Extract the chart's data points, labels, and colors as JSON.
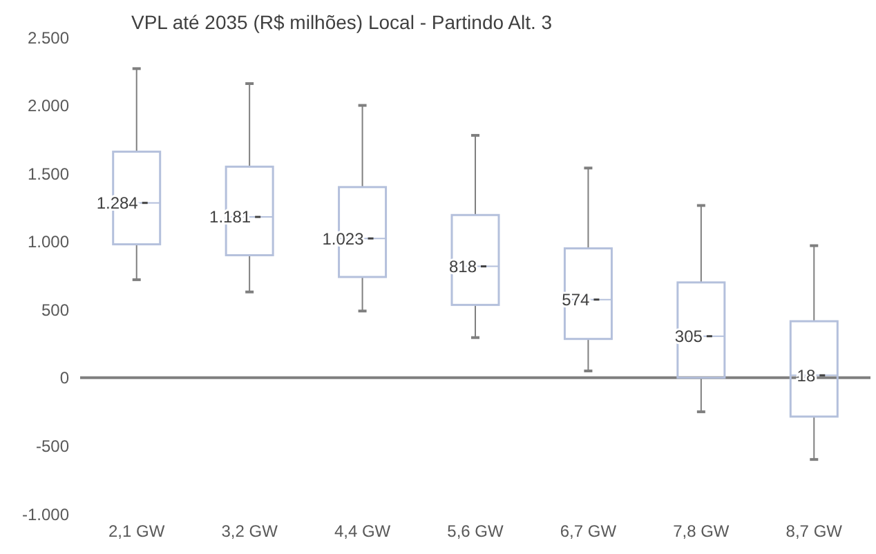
{
  "chart_data": {
    "type": "box",
    "title": "VPL até 2035 (R$ milhões) Local - Partindo Alt. 3",
    "categories": [
      "2,1 GW",
      "3,2 GW",
      "4,4 GW",
      "5,6 GW",
      "6,7 GW",
      "7,8 GW",
      "8,7 GW"
    ],
    "boxes": [
      {
        "low": 720,
        "q1": 980,
        "median": 1284,
        "q3": 1660,
        "high": 2270
      },
      {
        "low": 630,
        "q1": 900,
        "median": 1181,
        "q3": 1550,
        "high": 2160
      },
      {
        "low": 490,
        "q1": 740,
        "median": 1023,
        "q3": 1400,
        "high": 2000
      },
      {
        "low": 295,
        "q1": 535,
        "median": 818,
        "q3": 1195,
        "high": 1780
      },
      {
        "low": 50,
        "q1": 285,
        "median": 574,
        "q3": 950,
        "high": 1540
      },
      {
        "low": -250,
        "q1": 0,
        "median": 305,
        "q3": 700,
        "high": 1265
      },
      {
        "low": -600,
        "q1": -285,
        "median": 18,
        "q3": 415,
        "high": 970
      }
    ],
    "value_labels": [
      "1.284",
      "1.181",
      "1.023",
      "818",
      "574",
      "305",
      "18"
    ],
    "color": "#b4c0dc",
    "ylim": [
      -1000,
      2500
    ],
    "yticks": [
      {
        "value": -1000,
        "label": "-1.000"
      },
      {
        "value": -500,
        "label": "-500"
      },
      {
        "value": 0,
        "label": "0"
      },
      {
        "value": 500,
        "label": "500"
      },
      {
        "value": 1000,
        "label": "1.000"
      },
      {
        "value": 1500,
        "label": "1.500"
      },
      {
        "value": 2000,
        "label": "2.000"
      },
      {
        "value": 2500,
        "label": "2.500"
      }
    ],
    "ref_lines": [
      {
        "axis": "y",
        "value": 0,
        "color": "#7f7f7f"
      }
    ]
  }
}
